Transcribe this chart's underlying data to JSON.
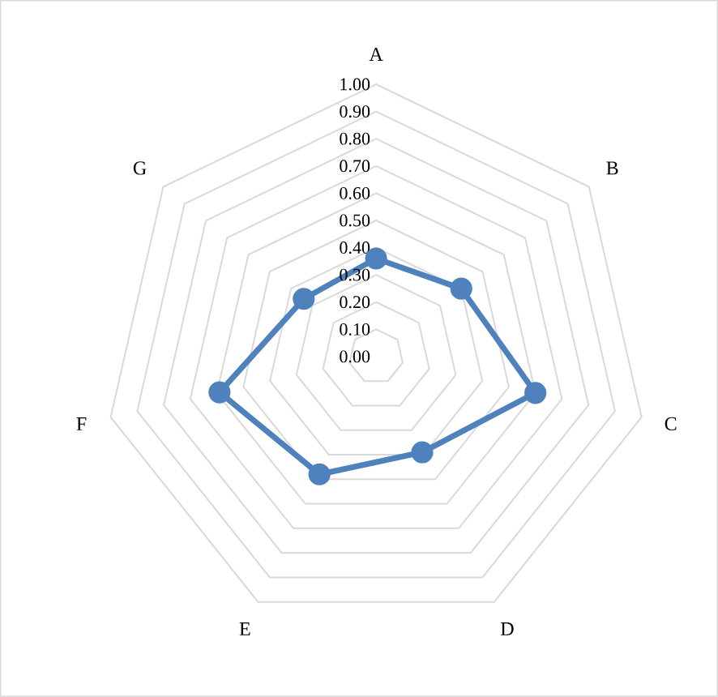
{
  "chart_data": {
    "type": "radar",
    "categories": [
      "A",
      "B",
      "C",
      "D",
      "E",
      "F",
      "G"
    ],
    "series": [
      {
        "color": "#4f81bd",
        "values": [
          0.36,
          0.4,
          0.6,
          0.39,
          0.48,
          0.59,
          0.34
        ]
      }
    ],
    "ylim": [
      0,
      1
    ],
    "yticks": [
      {
        "value": 0,
        "label": "0.00"
      },
      {
        "value": 0.1,
        "label": "0.10"
      },
      {
        "value": 0.2,
        "label": "0.20"
      },
      {
        "value": 0.3,
        "label": "0.30"
      },
      {
        "value": 0.4,
        "label": "0.40"
      },
      {
        "value": 0.5,
        "label": "0.50"
      },
      {
        "value": 0.6,
        "label": "0.60"
      },
      {
        "value": 0.7,
        "label": "0.70"
      },
      {
        "value": 0.8,
        "label": "0.80"
      },
      {
        "value": 0.9,
        "label": "0.90"
      },
      {
        "value": 1,
        "label": "1.00"
      }
    ],
    "grid": true,
    "marker": "circle",
    "line_style": "solid"
  }
}
